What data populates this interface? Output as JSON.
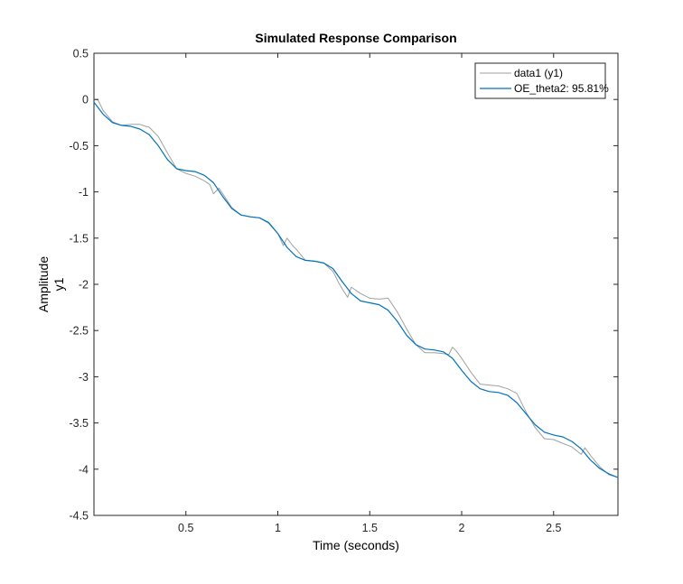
{
  "chart_data": {
    "type": "line",
    "title": "Simulated Response Comparison",
    "xlabel": "Time (seconds)",
    "ylabel": "Amplitude",
    "channel_label": "y1",
    "xlim": [
      0,
      2.85
    ],
    "ylim": [
      -4.5,
      0.5
    ],
    "xticks": [
      0.5,
      1,
      1.5,
      2,
      2.5
    ],
    "xtick_labels": [
      "0.5",
      "1",
      "1.5",
      "2",
      "2.5"
    ],
    "yticks": [
      0.5,
      0,
      -0.5,
      -1,
      -1.5,
      -2,
      -2.5,
      -3,
      -3.5,
      -4,
      -4.5
    ],
    "ytick_labels": [
      "0.5",
      "0",
      "-0.5",
      "-1",
      "-1.5",
      "-2",
      "-2.5",
      "-3",
      "-3.5",
      "-4",
      "-4.5"
    ],
    "grid": false,
    "legend_position": "top-right",
    "series": [
      {
        "name": "data1 (y1)",
        "color": "#a0a0a0",
        "x": [
          0,
          0.02,
          0.05,
          0.1,
          0.15,
          0.2,
          0.25,
          0.28,
          0.3,
          0.35,
          0.4,
          0.45,
          0.5,
          0.55,
          0.6,
          0.63,
          0.65,
          0.68,
          0.7,
          0.75,
          0.8,
          0.85,
          0.9,
          0.95,
          1.0,
          1.03,
          1.05,
          1.08,
          1.1,
          1.15,
          1.2,
          1.25,
          1.3,
          1.33,
          1.36,
          1.38,
          1.4,
          1.45,
          1.5,
          1.55,
          1.6,
          1.65,
          1.7,
          1.75,
          1.8,
          1.85,
          1.9,
          1.93,
          1.95,
          1.97,
          2.0,
          2.05,
          2.1,
          2.15,
          2.2,
          2.25,
          2.3,
          2.35,
          2.4,
          2.45,
          2.5,
          2.55,
          2.6,
          2.65,
          2.67,
          2.69,
          2.7,
          2.75,
          2.8,
          2.85
        ],
        "y": [
          0.0,
          0.0,
          -0.12,
          -0.24,
          -0.28,
          -0.27,
          -0.27,
          -0.29,
          -0.3,
          -0.4,
          -0.58,
          -0.75,
          -0.8,
          -0.83,
          -0.88,
          -0.92,
          -1.02,
          -0.96,
          -1.02,
          -1.17,
          -1.25,
          -1.27,
          -1.28,
          -1.34,
          -1.45,
          -1.58,
          -1.5,
          -1.58,
          -1.62,
          -1.74,
          -1.75,
          -1.77,
          -1.86,
          -1.98,
          -2.08,
          -2.14,
          -2.03,
          -2.1,
          -2.15,
          -2.16,
          -2.15,
          -2.3,
          -2.48,
          -2.65,
          -2.74,
          -2.74,
          -2.75,
          -2.76,
          -2.68,
          -2.72,
          -2.8,
          -2.95,
          -3.08,
          -3.09,
          -3.1,
          -3.13,
          -3.18,
          -3.38,
          -3.55,
          -3.67,
          -3.68,
          -3.72,
          -3.76,
          -3.84,
          -3.77,
          -3.82,
          -3.85,
          -3.97,
          -4.06,
          -4.09
        ]
      },
      {
        "name": "OE_theta2: 95.81%",
        "color": "#0072bd",
        "x": [
          0,
          0.05,
          0.1,
          0.15,
          0.2,
          0.25,
          0.3,
          0.35,
          0.4,
          0.45,
          0.5,
          0.55,
          0.6,
          0.65,
          0.7,
          0.75,
          0.8,
          0.85,
          0.9,
          0.95,
          1.0,
          1.05,
          1.1,
          1.15,
          1.2,
          1.25,
          1.3,
          1.35,
          1.4,
          1.45,
          1.5,
          1.55,
          1.6,
          1.65,
          1.7,
          1.75,
          1.8,
          1.85,
          1.9,
          1.95,
          2.0,
          2.05,
          2.1,
          2.15,
          2.2,
          2.25,
          2.3,
          2.35,
          2.4,
          2.45,
          2.5,
          2.55,
          2.6,
          2.65,
          2.7,
          2.75,
          2.8,
          2.85
        ],
        "y": [
          -0.03,
          -0.16,
          -0.25,
          -0.28,
          -0.29,
          -0.32,
          -0.38,
          -0.5,
          -0.65,
          -0.75,
          -0.77,
          -0.78,
          -0.82,
          -0.9,
          -1.05,
          -1.18,
          -1.25,
          -1.27,
          -1.28,
          -1.33,
          -1.45,
          -1.6,
          -1.7,
          -1.74,
          -1.75,
          -1.77,
          -1.83,
          -1.97,
          -2.1,
          -2.18,
          -2.2,
          -2.22,
          -2.28,
          -2.4,
          -2.55,
          -2.65,
          -2.7,
          -2.71,
          -2.73,
          -2.8,
          -2.93,
          -3.05,
          -3.13,
          -3.16,
          -3.17,
          -3.2,
          -3.28,
          -3.4,
          -3.52,
          -3.6,
          -3.63,
          -3.65,
          -3.7,
          -3.78,
          -3.9,
          -3.99,
          -4.05,
          -4.09
        ]
      }
    ]
  }
}
